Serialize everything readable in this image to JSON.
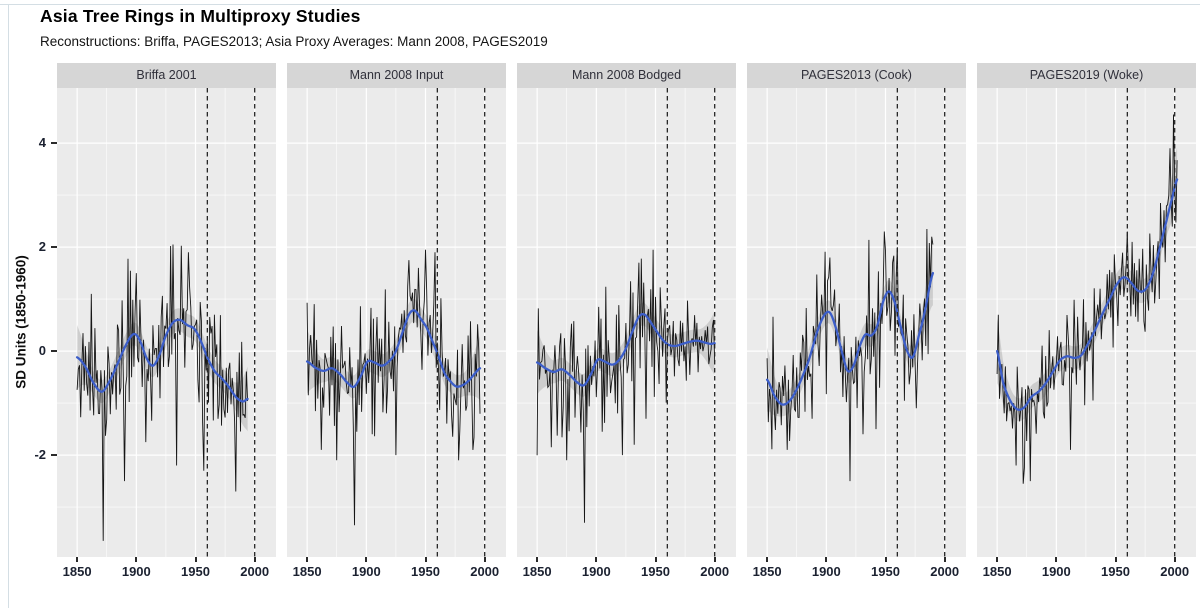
{
  "chart_data": {
    "type": "line",
    "title": "Asia Tree Rings in Multiproxy Studies",
    "subtitle": "Reconstructions: Briffa, PAGES2013; Asia Proxy Averages: Mann 2008, PAGES2019",
    "ylabel": "SD Units (1850-1960)",
    "xlabel": "",
    "legend": "none",
    "grid": "on",
    "x_domain": [
      1833,
      2018
    ],
    "y_domain": [
      -3.96,
      5.06
    ],
    "x_ticks": [
      1850,
      1900,
      1950,
      2000
    ],
    "x_tick_labels": [
      "1850",
      "1900",
      "1950",
      "2000"
    ],
    "x_minor_ticks": [
      1875,
      1925,
      1975
    ],
    "y_ticks": [
      -2,
      0,
      2,
      4
    ],
    "y_tick_labels": [
      "-2",
      "0",
      "2",
      "4"
    ],
    "y_minor_ticks": [
      -3,
      -1,
      1,
      3
    ],
    "dashed_vlines": [
      1960,
      2000
    ],
    "colors": {
      "panel_bg": "#ebebeb",
      "strip_bg": "#d6d6d6",
      "grid": "#ffffff",
      "series": "#161616",
      "smooth": "#3c5ec9",
      "ribbon": "rgba(70,70,70,0.18)",
      "vline": "#262626"
    },
    "panels": [
      {
        "label": "Briffa 2001",
        "start": 1850,
        "end": 1994,
        "noise_sd": 0.58,
        "seed": 11,
        "smooth_line_anchors": [
          [
            1850,
            -0.12
          ],
          [
            1857,
            -0.3
          ],
          [
            1864,
            -0.62
          ],
          [
            1871,
            -0.78
          ],
          [
            1878,
            -0.55
          ],
          [
            1885,
            -0.2
          ],
          [
            1892,
            0.15
          ],
          [
            1898,
            0.33
          ],
          [
            1903,
            0.2
          ],
          [
            1909,
            -0.15
          ],
          [
            1914,
            -0.28
          ],
          [
            1919,
            -0.1
          ],
          [
            1925,
            0.3
          ],
          [
            1931,
            0.55
          ],
          [
            1937,
            0.6
          ],
          [
            1943,
            0.5
          ],
          [
            1949,
            0.43
          ],
          [
            1954,
            0.22
          ],
          [
            1960,
            -0.12
          ],
          [
            1966,
            -0.38
          ],
          [
            1972,
            -0.52
          ],
          [
            1978,
            -0.68
          ],
          [
            1984,
            -0.88
          ],
          [
            1990,
            -0.97
          ],
          [
            1994,
            -0.92
          ]
        ],
        "extreme_points": [
          [
            1862,
            1.1
          ],
          [
            1872,
            -3.65
          ],
          [
            1890,
            -2.5
          ],
          [
            1900,
            1.5
          ],
          [
            1908,
            -1.75
          ],
          [
            1931,
            2.05
          ],
          [
            1934,
            -2.2
          ],
          [
            1944,
            1.9
          ],
          [
            1957,
            -2.3
          ],
          [
            1984,
            -2.7
          ]
        ]
      },
      {
        "label": "Mann 2008 Input",
        "start": 1850,
        "end": 1996,
        "noise_sd": 0.6,
        "seed": 23,
        "smooth_line_anchors": [
          [
            1850,
            -0.2
          ],
          [
            1857,
            -0.32
          ],
          [
            1864,
            -0.38
          ],
          [
            1871,
            -0.33
          ],
          [
            1878,
            -0.45
          ],
          [
            1885,
            -0.63
          ],
          [
            1890,
            -0.68
          ],
          [
            1896,
            -0.45
          ],
          [
            1901,
            -0.2
          ],
          [
            1907,
            -0.22
          ],
          [
            1913,
            -0.28
          ],
          [
            1918,
            -0.22
          ],
          [
            1924,
            -0.05
          ],
          [
            1930,
            0.32
          ],
          [
            1936,
            0.7
          ],
          [
            1941,
            0.78
          ],
          [
            1946,
            0.62
          ],
          [
            1951,
            0.45
          ],
          [
            1956,
            0.18
          ],
          [
            1961,
            -0.1
          ],
          [
            1966,
            -0.42
          ],
          [
            1971,
            -0.58
          ],
          [
            1976,
            -0.68
          ],
          [
            1981,
            -0.66
          ],
          [
            1986,
            -0.58
          ],
          [
            1991,
            -0.45
          ],
          [
            1996,
            -0.33
          ]
        ],
        "extreme_points": [
          [
            1862,
            -1.9
          ],
          [
            1875,
            -2.1
          ],
          [
            1890,
            -3.35
          ],
          [
            1905,
            -1.6
          ],
          [
            1925,
            -2.0
          ],
          [
            1936,
            1.75
          ],
          [
            1944,
            1.6
          ],
          [
            1950,
            1.95
          ],
          [
            1958,
            1.9
          ],
          [
            1978,
            -2.1
          ],
          [
            1990,
            -1.9
          ]
        ]
      },
      {
        "label": "Mann 2008 Bodged",
        "start": 1850,
        "end": 2000,
        "noise_sd": 0.6,
        "noise_sd_late": 0.28,
        "late_from": 1961,
        "seed": 35,
        "smooth_line_anchors": [
          [
            1850,
            -0.22
          ],
          [
            1857,
            -0.33
          ],
          [
            1864,
            -0.4
          ],
          [
            1871,
            -0.35
          ],
          [
            1878,
            -0.47
          ],
          [
            1885,
            -0.62
          ],
          [
            1890,
            -0.65
          ],
          [
            1896,
            -0.42
          ],
          [
            1901,
            -0.17
          ],
          [
            1907,
            -0.2
          ],
          [
            1913,
            -0.26
          ],
          [
            1918,
            -0.2
          ],
          [
            1924,
            0.0
          ],
          [
            1930,
            0.35
          ],
          [
            1936,
            0.66
          ],
          [
            1941,
            0.7
          ],
          [
            1946,
            0.55
          ],
          [
            1951,
            0.38
          ],
          [
            1956,
            0.22
          ],
          [
            1961,
            0.12
          ],
          [
            1967,
            0.1
          ],
          [
            1973,
            0.14
          ],
          [
            1979,
            0.18
          ],
          [
            1985,
            0.2
          ],
          [
            1991,
            0.17
          ],
          [
            1996,
            0.14
          ],
          [
            2000,
            0.15
          ]
        ],
        "extreme_points": [
          [
            1862,
            -1.85
          ],
          [
            1875,
            -2.1
          ],
          [
            1890,
            -3.3
          ],
          [
            1905,
            -1.55
          ],
          [
            1922,
            -2.0
          ],
          [
            1932,
            -1.8
          ],
          [
            1936,
            1.7
          ],
          [
            1942,
            -1.3
          ],
          [
            1948,
            1.95
          ]
        ]
      },
      {
        "label": "PAGES2013 (Cook)",
        "start": 1850,
        "end": 1990,
        "noise_sd": 0.55,
        "seed": 47,
        "smooth_line_anchors": [
          [
            1850,
            -0.55
          ],
          [
            1856,
            -0.85
          ],
          [
            1862,
            -1.02
          ],
          [
            1868,
            -0.98
          ],
          [
            1874,
            -0.78
          ],
          [
            1880,
            -0.48
          ],
          [
            1886,
            -0.12
          ],
          [
            1892,
            0.35
          ],
          [
            1898,
            0.68
          ],
          [
            1903,
            0.74
          ],
          [
            1908,
            0.45
          ],
          [
            1913,
            0.0
          ],
          [
            1918,
            -0.38
          ],
          [
            1923,
            -0.28
          ],
          [
            1928,
            0.08
          ],
          [
            1933,
            0.32
          ],
          [
            1938,
            0.3
          ],
          [
            1943,
            0.48
          ],
          [
            1948,
            0.95
          ],
          [
            1953,
            1.15
          ],
          [
            1958,
            0.92
          ],
          [
            1963,
            0.45
          ],
          [
            1968,
            0.02
          ],
          [
            1973,
            -0.12
          ],
          [
            1978,
            0.28
          ],
          [
            1983,
            0.75
          ],
          [
            1990,
            1.5
          ]
        ],
        "extreme_points": [
          [
            1867,
            -1.9
          ],
          [
            1903,
            1.8
          ],
          [
            1920,
            -2.5
          ],
          [
            1931,
            -1.6
          ],
          [
            1942,
            -1.5
          ],
          [
            1949,
            2.3
          ],
          [
            1960,
            2.0
          ],
          [
            1976,
            -1.1
          ],
          [
            1989,
            2.2
          ]
        ]
      },
      {
        "label": "PAGES2019 (Woke)",
        "start": 1850,
        "end": 2002,
        "noise_sd": 0.45,
        "seed": 59,
        "smooth_line_anchors": [
          [
            1850,
            0.0
          ],
          [
            1855,
            -0.6
          ],
          [
            1861,
            -0.95
          ],
          [
            1867,
            -1.12
          ],
          [
            1873,
            -1.08
          ],
          [
            1879,
            -0.88
          ],
          [
            1885,
            -0.78
          ],
          [
            1891,
            -0.62
          ],
          [
            1897,
            -0.4
          ],
          [
            1903,
            -0.18
          ],
          [
            1909,
            -0.1
          ],
          [
            1915,
            -0.13
          ],
          [
            1921,
            -0.08
          ],
          [
            1927,
            0.15
          ],
          [
            1933,
            0.42
          ],
          [
            1939,
            0.72
          ],
          [
            1945,
            1.0
          ],
          [
            1951,
            1.28
          ],
          [
            1957,
            1.42
          ],
          [
            1963,
            1.32
          ],
          [
            1969,
            1.16
          ],
          [
            1975,
            1.18
          ],
          [
            1981,
            1.45
          ],
          [
            1987,
            1.95
          ],
          [
            1993,
            2.5
          ],
          [
            1998,
            2.95
          ],
          [
            2002,
            3.3
          ]
        ],
        "extreme_points": [
          [
            1851,
            0.7
          ],
          [
            1866,
            -2.2
          ],
          [
            1872,
            -2.55
          ],
          [
            1878,
            -2.5
          ],
          [
            1912,
            -1.9
          ],
          [
            1931,
            -0.95
          ],
          [
            1960,
            2.3
          ],
          [
            1996,
            3.9
          ],
          [
            1999,
            4.55
          ]
        ]
      }
    ]
  }
}
